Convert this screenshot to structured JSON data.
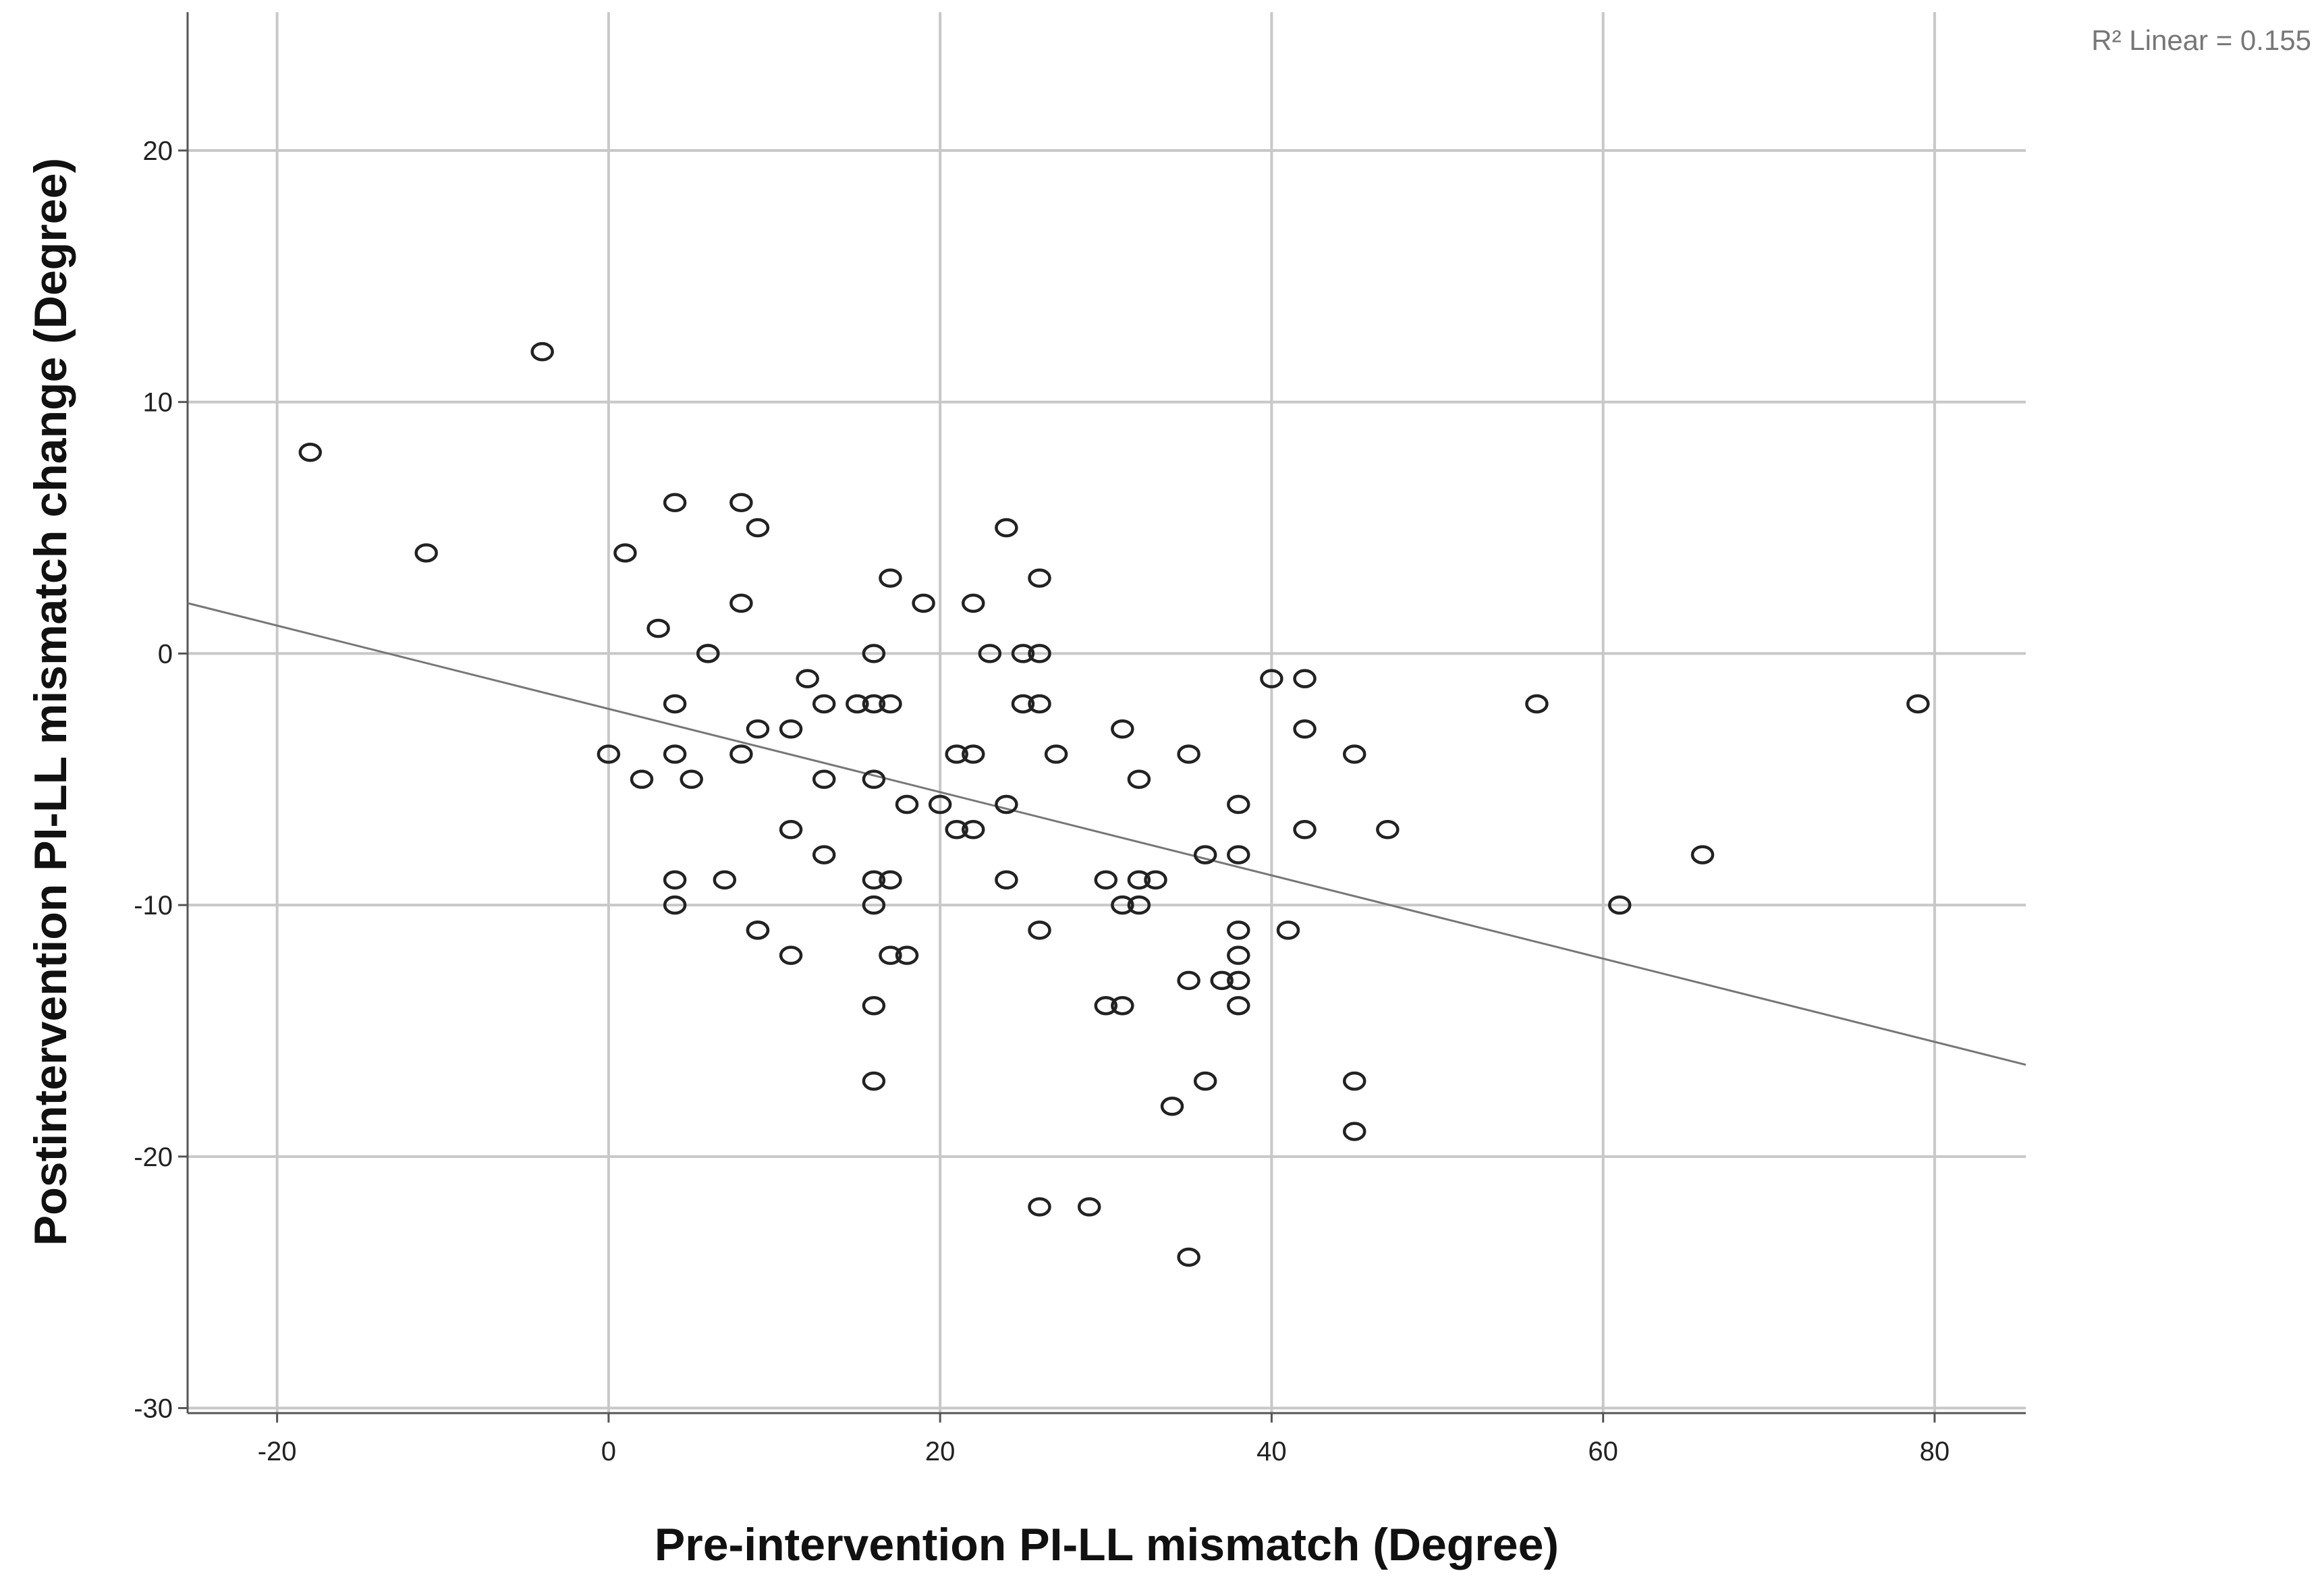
{
  "chart_data": {
    "type": "scatter",
    "title": "",
    "xlabel": "Pre-intervention PI-LL mismatch (Degree)",
    "ylabel": "Postintervention PI-LL mismatch change (Degree)",
    "xlim": [
      -25.4,
      85.5
    ],
    "ylim": [
      -30.2,
      25.5
    ],
    "xticks": [
      -20,
      0,
      20,
      40,
      60,
      80
    ],
    "yticks": [
      -30,
      -20,
      -10,
      0,
      10,
      20
    ],
    "xtick_labels": [
      "-20",
      "0",
      "20",
      "40",
      "60",
      "80"
    ],
    "ytick_labels": [
      "-30",
      "-20",
      "-10",
      "0",
      "10",
      "20"
    ],
    "grid": true,
    "fit_line": {
      "type": "linear",
      "slope": -0.1655,
      "intercept": -2.2
    },
    "annotation": "R² Linear = 0.155",
    "points": [
      [
        -18,
        8
      ],
      [
        -11,
        4
      ],
      [
        -4,
        12
      ],
      [
        0,
        -4
      ],
      [
        1,
        4
      ],
      [
        2,
        -5
      ],
      [
        3,
        1
      ],
      [
        4,
        6
      ],
      [
        4,
        -2
      ],
      [
        4,
        -4
      ],
      [
        4,
        -9
      ],
      [
        4,
        -10
      ],
      [
        5,
        -5
      ],
      [
        6,
        0
      ],
      [
        6,
        0
      ],
      [
        7,
        -9
      ],
      [
        8,
        6
      ],
      [
        8,
        2
      ],
      [
        8,
        -4
      ],
      [
        9,
        5
      ],
      [
        9,
        -3
      ],
      [
        9,
        -11
      ],
      [
        9,
        -11
      ],
      [
        11,
        -3
      ],
      [
        11,
        -7
      ],
      [
        11,
        -12
      ],
      [
        12,
        -1
      ],
      [
        13,
        -2
      ],
      [
        13,
        -5
      ],
      [
        13,
        -8
      ],
      [
        15,
        -2
      ],
      [
        16,
        0
      ],
      [
        16,
        -2
      ],
      [
        16,
        -5
      ],
      [
        16,
        -9
      ],
      [
        16,
        -10
      ],
      [
        16,
        -14
      ],
      [
        16,
        -17
      ],
      [
        17,
        3
      ],
      [
        17,
        -2
      ],
      [
        17,
        -9
      ],
      [
        17,
        -12
      ],
      [
        18,
        -6
      ],
      [
        18,
        -12
      ],
      [
        19,
        2
      ],
      [
        20,
        -6
      ],
      [
        21,
        -4
      ],
      [
        21,
        -7
      ],
      [
        22,
        2
      ],
      [
        22,
        -4
      ],
      [
        22,
        -7
      ],
      [
        23,
        0
      ],
      [
        24,
        5
      ],
      [
        24,
        -6
      ],
      [
        24,
        -9
      ],
      [
        25,
        0
      ],
      [
        25,
        -2
      ],
      [
        26,
        3
      ],
      [
        26,
        0
      ],
      [
        26,
        -2
      ],
      [
        26,
        -11
      ],
      [
        26,
        -22
      ],
      [
        27,
        -4
      ],
      [
        29,
        -22
      ],
      [
        30,
        -9
      ],
      [
        30,
        -14
      ],
      [
        31,
        -3
      ],
      [
        31,
        -10
      ],
      [
        31,
        -14
      ],
      [
        32,
        -5
      ],
      [
        32,
        -9
      ],
      [
        32,
        -10
      ],
      [
        33,
        -9
      ],
      [
        34,
        -18
      ],
      [
        35,
        -4
      ],
      [
        35,
        -13
      ],
      [
        35,
        -24
      ],
      [
        36,
        -8
      ],
      [
        36,
        -17
      ],
      [
        37,
        -13
      ],
      [
        38,
        -6
      ],
      [
        38,
        -8
      ],
      [
        38,
        -11
      ],
      [
        38,
        -12
      ],
      [
        38,
        -13
      ],
      [
        38,
        -14
      ],
      [
        40,
        -1
      ],
      [
        41,
        -11
      ],
      [
        42,
        -1
      ],
      [
        42,
        -3
      ],
      [
        42,
        -7
      ],
      [
        45,
        -4
      ],
      [
        45,
        -17
      ],
      [
        45,
        -19
      ],
      [
        47,
        -7
      ],
      [
        56,
        -2
      ],
      [
        61,
        -10
      ],
      [
        66,
        -8
      ],
      [
        79,
        -2
      ]
    ],
    "colors": {
      "grid": "#c8c8c8",
      "axis": "#555555",
      "marker": "#222222",
      "fit": "#777777"
    }
  }
}
